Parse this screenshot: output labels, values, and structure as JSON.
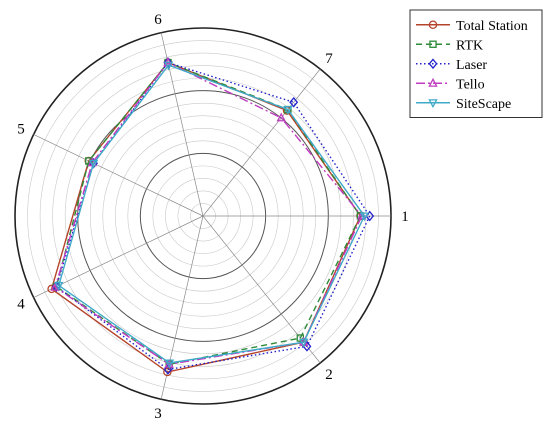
{
  "chart_data": {
    "type": "radar",
    "categories": [
      "1",
      "2",
      "3",
      "4",
      "5",
      "6",
      "7"
    ],
    "rlim": [
      0,
      100
    ],
    "rings": 15,
    "grid": true,
    "legend_position": "top-right",
    "series": [
      {
        "name": "Total Station",
        "color": "#b5442a",
        "dash": "",
        "marker": "circle",
        "values": [
          77,
          80,
          79,
          85,
          54,
          77,
          60
        ]
      },
      {
        "name": "RTK",
        "color": "#2e8b3a",
        "dash": "6,4",
        "marker": "square",
        "values": [
          77,
          76,
          73,
          81,
          54,
          77,
          61
        ]
      },
      {
        "name": "Laser",
        "color": "#2222cc",
        "dash": "1.5,2.5",
        "marker": "diamond",
        "values": [
          84,
          84,
          77,
          81,
          50,
          77,
          68
        ]
      },
      {
        "name": "Tello",
        "color": "#c03bc0",
        "dash": "9,3,2,3",
        "marker": "triangle-up",
        "values": [
          78,
          80,
          73,
          82,
          51,
          77,
          53
        ]
      },
      {
        "name": "SiteScape",
        "color": "#3fa9c9",
        "dash": "",
        "marker": "triangle-down",
        "values": [
          80,
          80,
          72,
          79,
          50,
          75,
          61
        ]
      }
    ]
  }
}
